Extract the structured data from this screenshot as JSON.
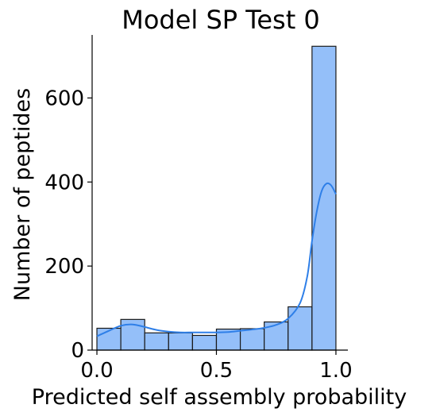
{
  "chart_data": {
    "type": "bar",
    "subtype": "histogram_with_kde",
    "title": "Model SP Test 0",
    "xlabel": "Predicted self assembly probability",
    "ylabel": "Number of peptides",
    "xlim": [
      -0.02,
      1.05
    ],
    "ylim": [
      0,
      750
    ],
    "xticks": [
      0.0,
      0.5,
      1.0
    ],
    "xtick_labels": [
      "0.0",
      "0.5",
      "1.0"
    ],
    "yticks": [
      0,
      200,
      400,
      600
    ],
    "ytick_labels": [
      "0",
      "200",
      "400",
      "600"
    ],
    "grid": false,
    "legend": "none",
    "bin_edges": [
      0.0,
      0.1,
      0.2,
      0.3,
      0.4,
      0.5,
      0.6,
      0.7,
      0.8,
      0.9,
      1.0
    ],
    "values": [
      52,
      73,
      41,
      41,
      35,
      50,
      51,
      67,
      103,
      723
    ],
    "kde": {
      "x": [
        0.0,
        0.05,
        0.1,
        0.15,
        0.2,
        0.25,
        0.3,
        0.35,
        0.4,
        0.45,
        0.5,
        0.55,
        0.6,
        0.65,
        0.7,
        0.75,
        0.8,
        0.85,
        0.88,
        0.9,
        0.92,
        0.94,
        0.96,
        0.98,
        1.0
      ],
      "y": [
        33,
        46,
        58,
        61,
        55,
        48,
        44,
        42,
        42,
        42,
        42,
        43,
        46,
        49,
        53,
        60,
        75,
        112,
        175,
        260,
        330,
        378,
        396,
        392,
        371
      ]
    },
    "colors": {
      "bar_fill": "#94bff9",
      "bar_edge": "#1a1a1a",
      "kde_line": "#2e7fe8",
      "axis": "#000000"
    }
  }
}
